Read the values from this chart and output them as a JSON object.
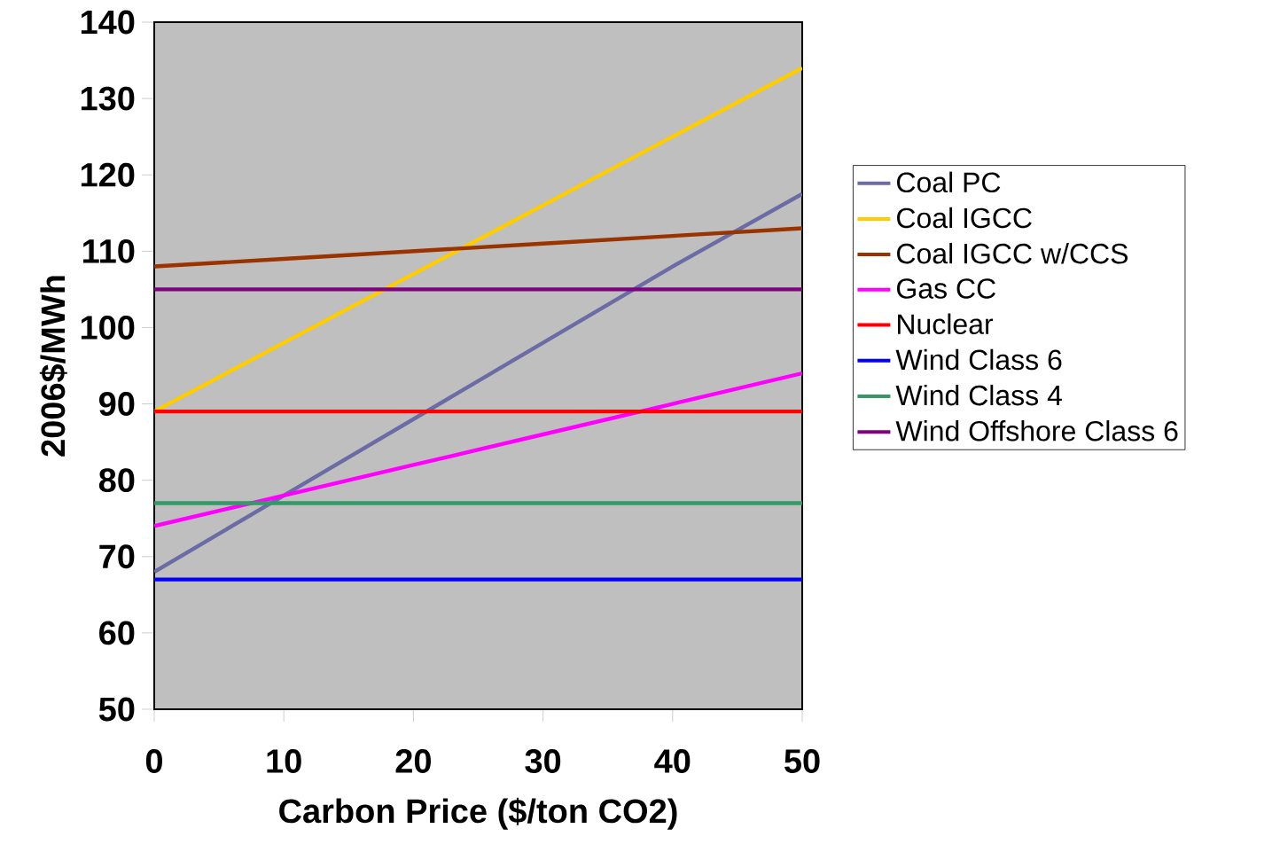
{
  "chart_data": {
    "type": "line",
    "xlabel": "Carbon Price ($/ton CO2)",
    "ylabel": "2006$/MWh",
    "x": [
      0,
      10,
      20,
      30,
      40,
      50
    ],
    "series": [
      {
        "name": "Coal PC",
        "color": "#6b6ba6",
        "values": [
          68,
          78,
          88,
          98,
          108,
          117.5
        ]
      },
      {
        "name": "Coal IGCC",
        "color": "#ffcc00",
        "values": [
          89,
          98,
          107,
          116,
          125,
          134
        ]
      },
      {
        "name": "Coal IGCC w/CCS",
        "color": "#993300",
        "values": [
          108,
          109,
          110,
          111,
          112,
          113
        ]
      },
      {
        "name": "Gas CC",
        "color": "#ff00ff",
        "values": [
          74,
          78,
          82,
          86,
          90,
          94
        ]
      },
      {
        "name": "Nuclear",
        "color": "#ff0000",
        "values": [
          89,
          89,
          89,
          89,
          89,
          89
        ]
      },
      {
        "name": "Wind Class 6",
        "color": "#0000ff",
        "values": [
          67,
          67,
          67,
          67,
          67,
          67
        ]
      },
      {
        "name": "Wind Class 4",
        "color": "#339966",
        "values": [
          77,
          77,
          77,
          77,
          77,
          77
        ]
      },
      {
        "name": "Wind Offshore Class 6",
        "color": "#800080",
        "values": [
          105,
          105,
          105,
          105,
          105,
          105
        ]
      }
    ],
    "xlim": [
      0,
      50
    ],
    "ylim": [
      50,
      140
    ],
    "xticks": [
      0,
      10,
      20,
      30,
      40,
      50
    ],
    "yticks": [
      50,
      60,
      70,
      80,
      90,
      100,
      110,
      120,
      130,
      140
    ],
    "legend": "right",
    "marker": "none",
    "line_style": "solid"
  }
}
